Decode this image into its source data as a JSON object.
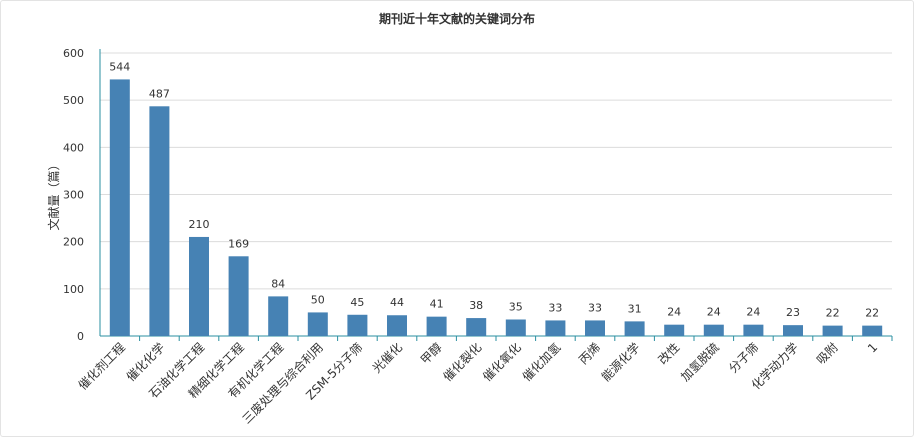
{
  "chart_data": {
    "type": "bar",
    "title": "期刊近十年文献的关键词分布",
    "xlabel": "",
    "ylabel": "文献量（篇）",
    "ylim": [
      0,
      600
    ],
    "yticks": [
      0,
      100,
      200,
      300,
      400,
      500,
      600
    ],
    "grid": true,
    "bar_color": "#4682b4",
    "categories": [
      "催化剂工程",
      "催化化学",
      "石油化学工程",
      "精细化学工程",
      "有机化学工程",
      "三废处理与综合利用",
      "ZSM-5分子筛",
      "光催化",
      "甲醇",
      "催化裂化",
      "催化氧化",
      "催化加氢",
      "丙烯",
      "能源化学",
      "改性",
      "加氢脱硫",
      "分子筛",
      "化学动力学",
      "吸附",
      "1"
    ],
    "values": [
      544,
      487,
      210,
      169,
      84,
      50,
      45,
      44,
      41,
      38,
      35,
      33,
      33,
      31,
      24,
      24,
      24,
      23,
      22,
      22
    ]
  }
}
